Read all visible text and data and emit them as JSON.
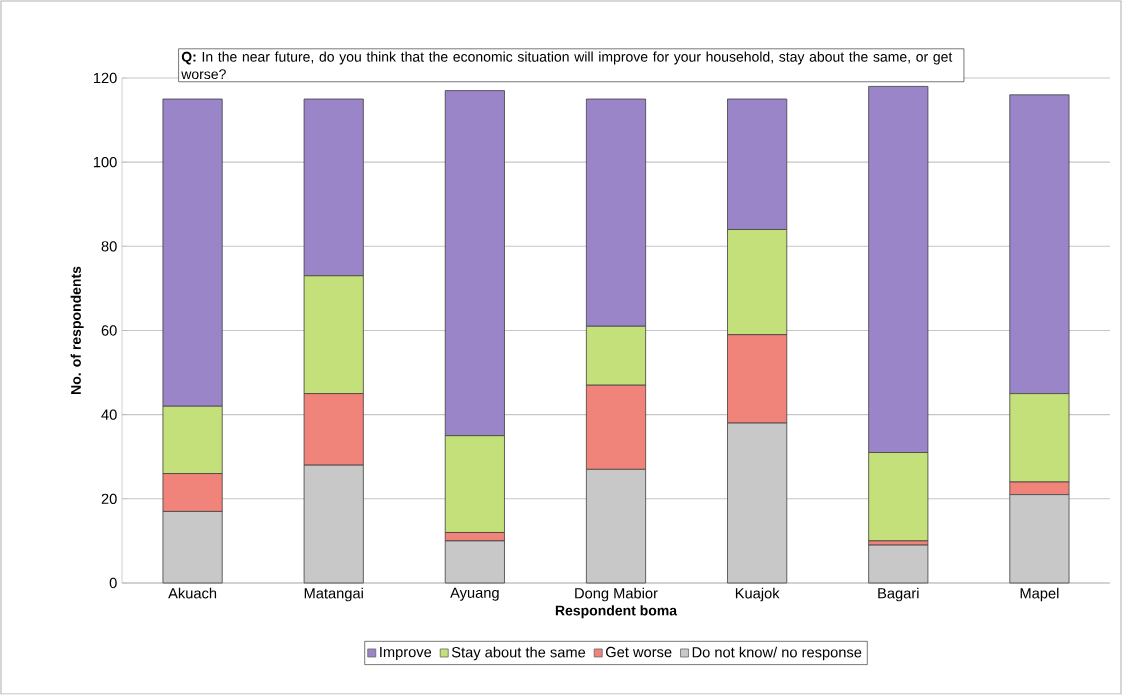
{
  "chart_data": {
    "type": "bar",
    "stacked": true,
    "title": "**Q:** In the near future, do you think that the economic situation will improve for your household, stay about the same, or get worse?",
    "xlabel": "Respondent boma",
    "ylabel": "No. of respondents",
    "categories": [
      "Akuach",
      "Matangai",
      "Ayuang",
      "Dong Mabior",
      "Kuajok",
      "Bagari",
      "Mapel"
    ],
    "series": [
      {
        "name": "Do not know/ no response",
        "color": "#c8c8c8",
        "values": [
          17,
          28,
          10,
          27,
          38,
          9,
          21
        ]
      },
      {
        "name": "Get worse",
        "color": "#f0837a",
        "values": [
          9,
          17,
          2,
          20,
          21,
          1,
          3
        ]
      },
      {
        "name": "Stay about the same",
        "color": "#c4e07a",
        "values": [
          16,
          28,
          23,
          14,
          25,
          21,
          21
        ]
      },
      {
        "name": "Improve",
        "color": "#9b85c9",
        "values": [
          73,
          42,
          82,
          54,
          31,
          87,
          71
        ]
      }
    ],
    "ylim": [
      0,
      120
    ],
    "yticks": [
      0,
      20,
      40,
      60,
      80,
      100,
      120
    ],
    "grid": "y",
    "legend": "bottom"
  }
}
